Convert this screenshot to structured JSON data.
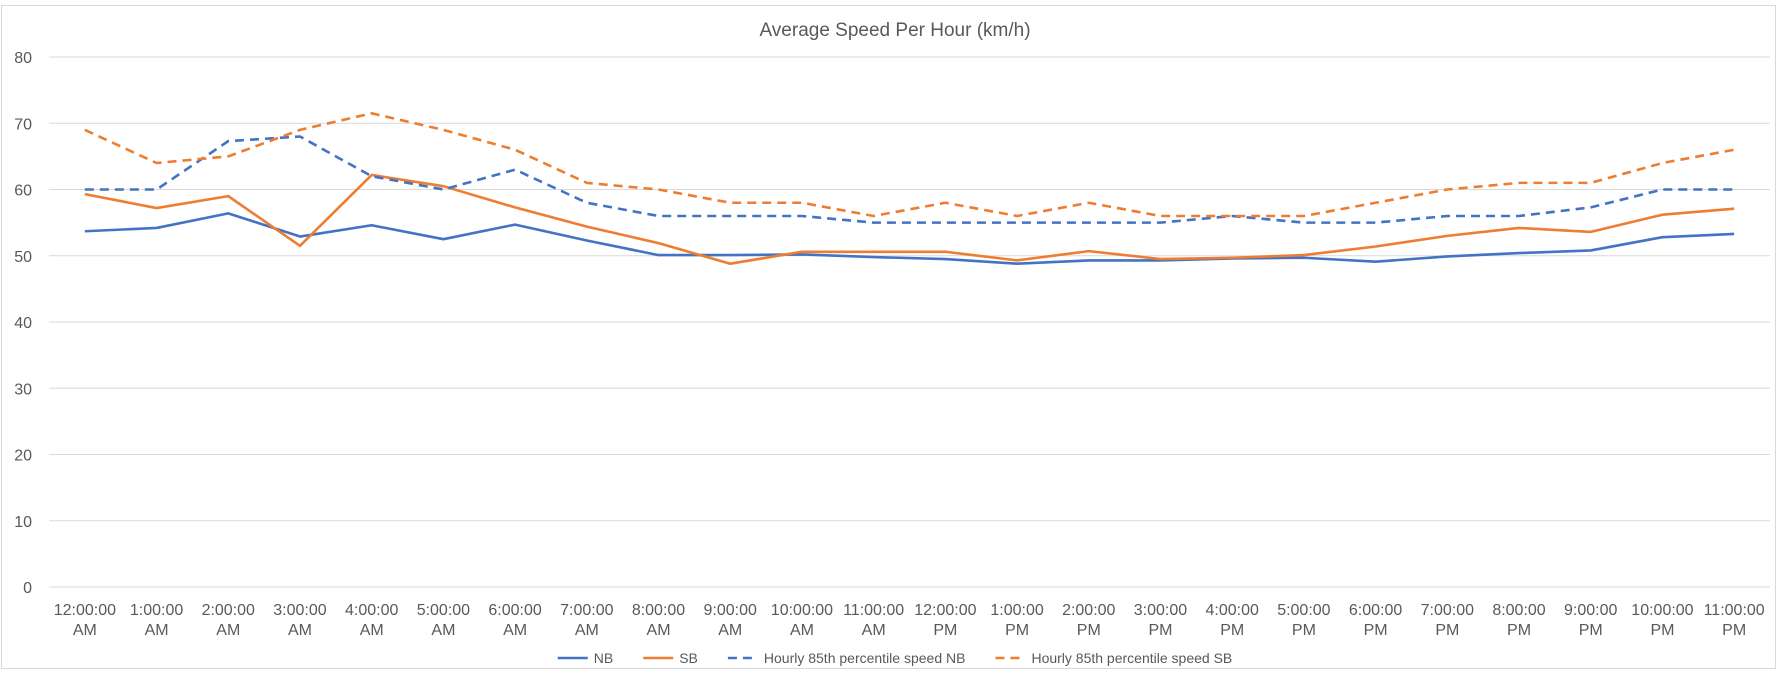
{
  "chart_data": {
    "type": "line",
    "title": "Average Speed Per Hour (km/h)",
    "xlabel": "",
    "ylabel": "",
    "ylim": [
      0,
      80
    ],
    "yticks": [
      0,
      10,
      20,
      30,
      40,
      50,
      60,
      70,
      80
    ],
    "grid": true,
    "legend": "bottom",
    "categories": [
      "12:00:00 AM",
      "1:00:00 AM",
      "2:00:00 AM",
      "3:00:00 AM",
      "4:00:00 AM",
      "5:00:00 AM",
      "6:00:00 AM",
      "7:00:00 AM",
      "8:00:00 AM",
      "9:00:00 AM",
      "10:00:00 AM",
      "11:00:00 AM",
      "12:00:00 PM",
      "1:00:00 PM",
      "2:00:00 PM",
      "3:00:00 PM",
      "4:00:00 PM",
      "5:00:00 PM",
      "6:00:00 PM",
      "7:00:00 PM",
      "8:00:00 PM",
      "9:00:00 PM",
      "10:00:00 PM",
      "11:00:00 PM"
    ],
    "series": [
      {
        "name": "NB",
        "color": "#4472c4",
        "dash": "solid",
        "values": [
          53.7,
          54.2,
          56.4,
          52.9,
          54.6,
          52.5,
          54.7,
          52.3,
          50.1,
          50.1,
          50.2,
          49.8,
          49.5,
          48.8,
          49.3,
          49.3,
          49.6,
          49.7,
          49.1,
          49.9,
          50.4,
          50.8,
          52.8,
          53.3
        ]
      },
      {
        "name": "SB",
        "color": "#ed7d31",
        "dash": "solid",
        "values": [
          59.3,
          57.2,
          59.0,
          51.5,
          62.2,
          60.5,
          57.3,
          54.4,
          51.9,
          48.8,
          50.6,
          50.6,
          50.6,
          49.3,
          50.7,
          49.5,
          49.7,
          50.1,
          51.4,
          53.0,
          54.2,
          53.6,
          56.2,
          57.1
        ]
      },
      {
        "name": "Hourly 85th percentile speed NB",
        "color": "#4472c4",
        "dash": "dashed",
        "values": [
          60,
          60,
          67.3,
          68,
          62,
          60,
          63,
          58,
          56,
          56,
          56,
          55,
          55,
          55,
          55,
          55,
          56,
          55,
          55,
          56,
          56,
          57.3,
          60,
          60
        ]
      },
      {
        "name": "Hourly 85th percentile speed SB",
        "color": "#ed7d31",
        "dash": "dashed",
        "values": [
          69,
          64,
          65,
          69,
          71.5,
          69,
          66,
          61,
          60,
          58,
          58,
          56,
          58,
          56,
          58,
          56,
          56,
          56,
          58,
          60,
          61,
          61,
          64,
          66
        ]
      }
    ]
  },
  "colors": {
    "grid": "#d9d9d9",
    "axis_text": "#595959"
  }
}
